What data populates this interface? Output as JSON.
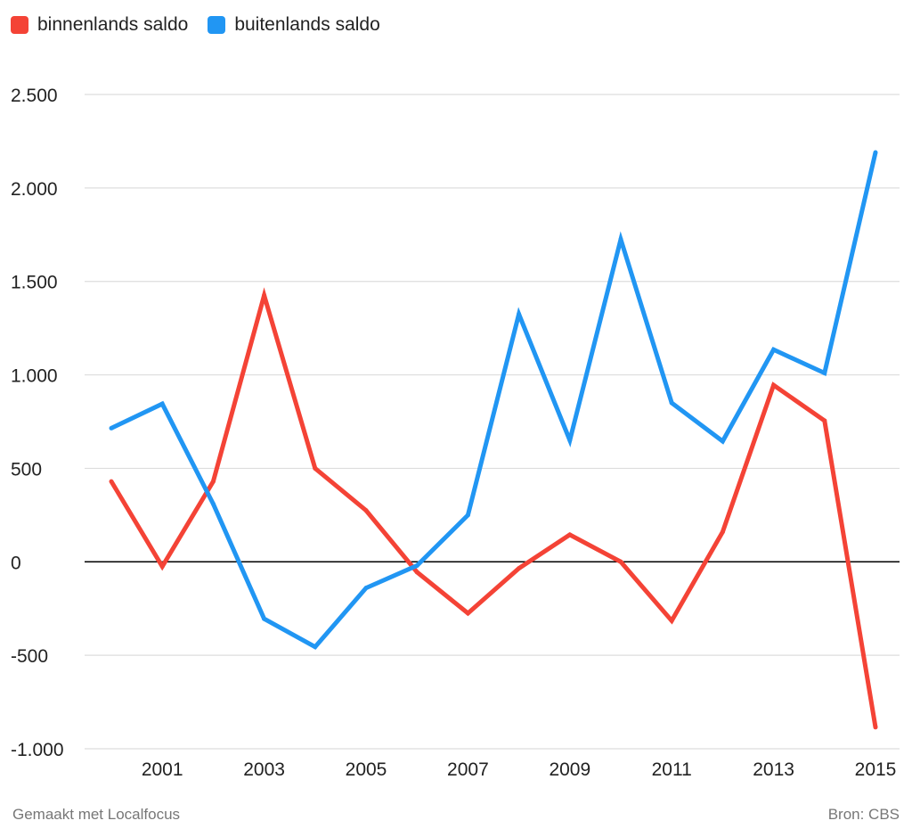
{
  "chart_data": {
    "type": "line",
    "title": "",
    "xlabel": "",
    "ylabel": "",
    "x": [
      2000,
      2001,
      2002,
      2003,
      2004,
      2005,
      2006,
      2007,
      2008,
      2009,
      2010,
      2011,
      2012,
      2013,
      2014,
      2015
    ],
    "x_tick_labels": [
      "2001",
      "2003",
      "2005",
      "2007",
      "2009",
      "2011",
      "2013",
      "2015"
    ],
    "x_ticks": [
      2001,
      2003,
      2005,
      2007,
      2009,
      2011,
      2013,
      2015
    ],
    "y_ticks": [
      -1000,
      -500,
      0,
      500,
      1000,
      1500,
      2000,
      2500
    ],
    "y_tick_labels": [
      "-1.000",
      "-500",
      "0",
      "500",
      "1.000",
      "1.500",
      "2.000",
      "2.500"
    ],
    "ylim": [
      -1000,
      2500
    ],
    "grid": true,
    "legend_position": "top-left",
    "series": [
      {
        "name": "binnenlands saldo",
        "color": "#f44336",
        "values": [
          430,
          -25,
          430,
          1425,
          500,
          275,
          -55,
          -275,
          -35,
          145,
          0,
          -315,
          160,
          945,
          755,
          -885
        ]
      },
      {
        "name": "buitenlands saldo",
        "color": "#2196f3",
        "values": [
          715,
          845,
          310,
          -305,
          -455,
          -140,
          -20,
          250,
          1325,
          650,
          1725,
          850,
          645,
          1135,
          1010,
          2190
        ]
      }
    ]
  },
  "footer": {
    "left": "Gemaakt met Localfocus",
    "right": "Bron: CBS"
  }
}
